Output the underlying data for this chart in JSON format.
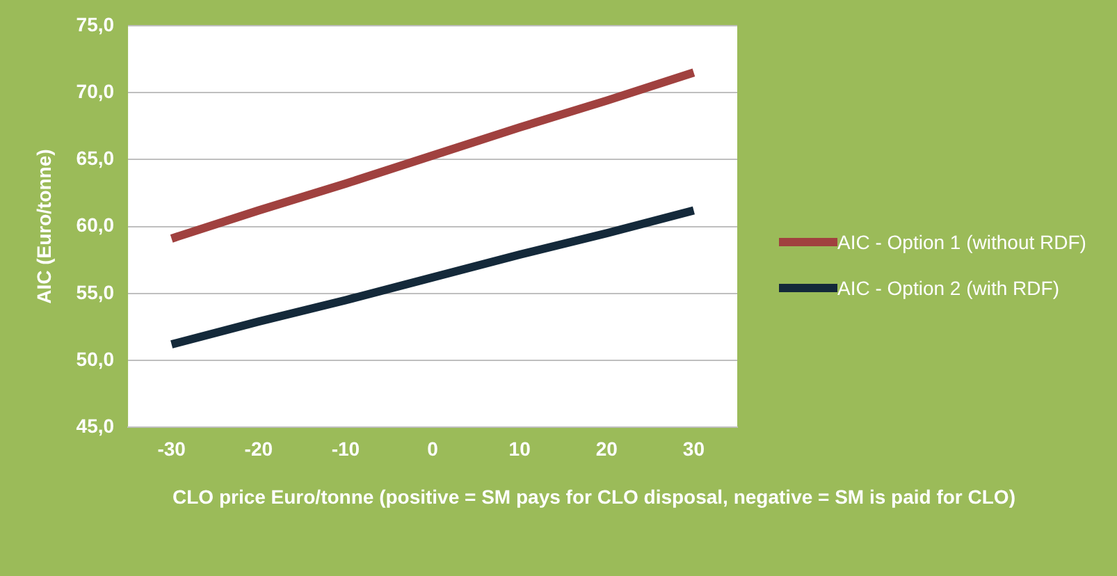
{
  "chart_data": {
    "type": "line",
    "xlabel": "CLO price Euro/tonne (positive = SM pays for CLO disposal, negative = SM is paid for CLO)",
    "ylabel": "AIC (Euro/tonne)",
    "categories": [
      "-30",
      "-20",
      "-10",
      "0",
      "10",
      "20",
      "30"
    ],
    "series": [
      {
        "name": "AIC - Option 1  (without RDF)",
        "color": "#a0413f",
        "values": [
          59.1,
          61.2,
          63.2,
          65.3,
          67.4,
          69.4,
          71.5
        ]
      },
      {
        "name": "AIC - Option 2 (with RDF)",
        "color": "#14293a",
        "values": [
          51.2,
          52.9,
          54.5,
          56.2,
          57.9,
          59.5,
          61.2
        ]
      }
    ],
    "ylim": [
      45,
      75
    ],
    "yticks": [
      {
        "value": 45,
        "label": "45,0"
      },
      {
        "value": 50,
        "label": "50,0"
      },
      {
        "value": 55,
        "label": "55,0"
      },
      {
        "value": 60,
        "label": "60,0"
      },
      {
        "value": 65,
        "label": "65,0"
      },
      {
        "value": 70,
        "label": "70,0"
      },
      {
        "value": 75,
        "label": "75,0"
      }
    ],
    "grid": "y",
    "legend": "right",
    "marker": "none",
    "line_style": "solid"
  }
}
